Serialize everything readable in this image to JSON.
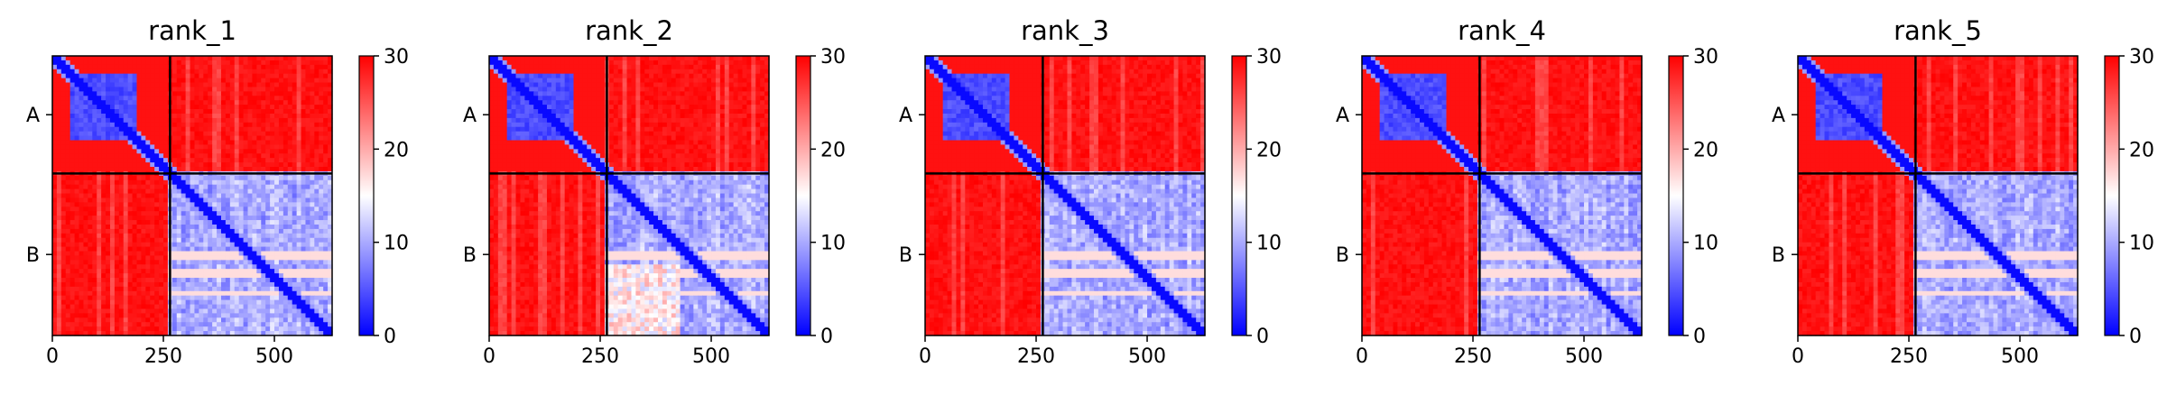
{
  "figure": {
    "colorscale": {
      "low": "#0000ff",
      "mid": "#ffffff",
      "high": "#ff0000"
    },
    "panel_titles": [
      "rank_1",
      "rank_2",
      "rank_3",
      "rank_4",
      "rank_5"
    ]
  },
  "chart_data": [
    {
      "type": "heatmap",
      "title": "rank_1",
      "matrix_extent": [
        0,
        630
      ],
      "chain_boundary": 265,
      "chains": [
        "A",
        "B"
      ],
      "xticks": [
        0,
        250,
        500
      ],
      "xtick_labels": [
        "0",
        "250",
        "500"
      ],
      "colorbar": {
        "min": 0,
        "max": 30,
        "ticks": [
          0,
          10,
          20,
          30
        ],
        "tick_labels": [
          "0",
          "10",
          "20",
          "30"
        ]
      },
      "domain_blocks": [
        {
          "chain": "A",
          "range": [
            40,
            190
          ],
          "value": 3
        }
      ],
      "b_chain_white_row_fractions": [
        0.5,
        0.62,
        0.74
      ]
    },
    {
      "type": "heatmap",
      "title": "rank_2",
      "matrix_extent": [
        0,
        630
      ],
      "chain_boundary": 265,
      "chains": [
        "A",
        "B"
      ],
      "xticks": [
        0,
        250,
        500
      ],
      "xtick_labels": [
        "0",
        "250",
        "500"
      ],
      "colorbar": {
        "min": 0,
        "max": 30,
        "ticks": [
          0,
          10,
          20,
          30
        ],
        "tick_labels": [
          "0",
          "10",
          "20",
          "30"
        ]
      },
      "domain_blocks": [
        {
          "chain": "A",
          "range": [
            40,
            190
          ],
          "value": 3
        }
      ],
      "b_chain_white_row_fractions": [
        0.5,
        0.62,
        0.74
      ]
    },
    {
      "type": "heatmap",
      "title": "rank_3",
      "matrix_extent": [
        0,
        630
      ],
      "chain_boundary": 265,
      "chains": [
        "A",
        "B"
      ],
      "xticks": [
        0,
        250,
        500
      ],
      "xtick_labels": [
        "0",
        "250",
        "500"
      ],
      "colorbar": {
        "min": 0,
        "max": 30,
        "ticks": [
          0,
          10,
          20,
          30
        ],
        "tick_labels": [
          "0",
          "10",
          "20",
          "30"
        ]
      },
      "domain_blocks": [
        {
          "chain": "A",
          "range": [
            40,
            190
          ],
          "value": 3
        }
      ],
      "b_chain_white_row_fractions": [
        0.5,
        0.62,
        0.74
      ]
    },
    {
      "type": "heatmap",
      "title": "rank_4",
      "matrix_extent": [
        0,
        630
      ],
      "chain_boundary": 265,
      "chains": [
        "A",
        "B"
      ],
      "xticks": [
        0,
        250,
        500
      ],
      "xtick_labels": [
        "0",
        "250",
        "500"
      ],
      "colorbar": {
        "min": 0,
        "max": 30,
        "ticks": [
          0,
          10,
          20,
          30
        ],
        "tick_labels": [
          "0",
          "10",
          "20",
          "30"
        ]
      },
      "domain_blocks": [
        {
          "chain": "A",
          "range": [
            40,
            190
          ],
          "value": 3
        }
      ],
      "b_chain_white_row_fractions": [
        0.5,
        0.62,
        0.74
      ]
    },
    {
      "type": "heatmap",
      "title": "rank_5",
      "matrix_extent": [
        0,
        630
      ],
      "chain_boundary": 265,
      "chains": [
        "A",
        "B"
      ],
      "xticks": [
        0,
        250,
        500
      ],
      "xtick_labels": [
        "0",
        "250",
        "500"
      ],
      "colorbar": {
        "min": 0,
        "max": 30,
        "ticks": [
          0,
          10,
          20,
          30
        ],
        "tick_labels": [
          "0",
          "10",
          "20",
          "30"
        ]
      },
      "domain_blocks": [
        {
          "chain": "A",
          "range": [
            40,
            190
          ],
          "value": 3
        }
      ],
      "b_chain_white_row_fractions": [
        0.5,
        0.62,
        0.74
      ]
    }
  ]
}
